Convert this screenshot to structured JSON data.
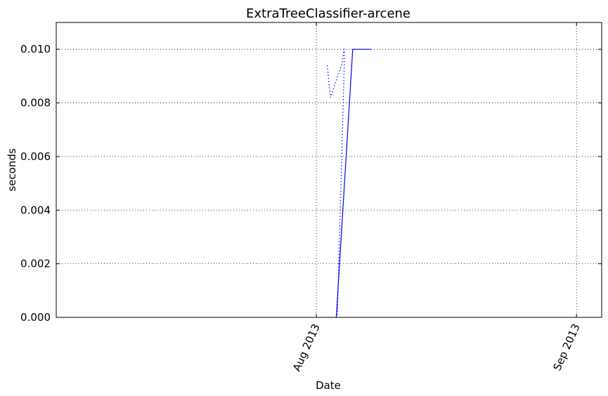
{
  "chart_data": {
    "type": "line",
    "title": "ExtraTreeClassifier-arcene",
    "xlabel": "Date",
    "ylabel": "seconds",
    "xlim": [
      "2013-07-01",
      "2013-09-04"
    ],
    "ylim": [
      0,
      0.011
    ],
    "yticks": [
      0,
      0.002,
      0.004,
      0.006,
      0.008,
      0.01
    ],
    "ytick_labels": [
      "0.000",
      "0.002",
      "0.004",
      "0.006",
      "0.008",
      "0.010"
    ],
    "xticks": [
      "2013-08-01",
      "2013-09-01"
    ],
    "xtick_labels": [
      "Aug 2013",
      "Sep 2013"
    ],
    "grid": true,
    "series": [
      {
        "style": "solid",
        "color": "#0000ff",
        "points": [
          {
            "x": "2013-08-03 09:00",
            "y": 0
          },
          {
            "x": "2013-08-05 08:00",
            "y": 0.01
          },
          {
            "x": "2013-08-07 12:00",
            "y": 0.01
          }
        ]
      },
      {
        "style": "dotted",
        "color": "#0000ff",
        "points": [
          {
            "x": "2013-08-02 07:00",
            "y": 0.0094
          },
          {
            "x": "2013-08-02 16:00",
            "y": 0.0082
          },
          {
            "x": "2013-08-04 02:00",
            "y": 0.0095
          },
          {
            "x": "2013-08-04 07:00",
            "y": 0.01
          },
          {
            "x": "2013-08-04 08:00",
            "y": 0.01
          },
          {
            "x": "2013-08-04 08:00",
            "y": 0.0095
          },
          {
            "x": "2013-08-03 12:00",
            "y": 0
          }
        ]
      }
    ]
  }
}
